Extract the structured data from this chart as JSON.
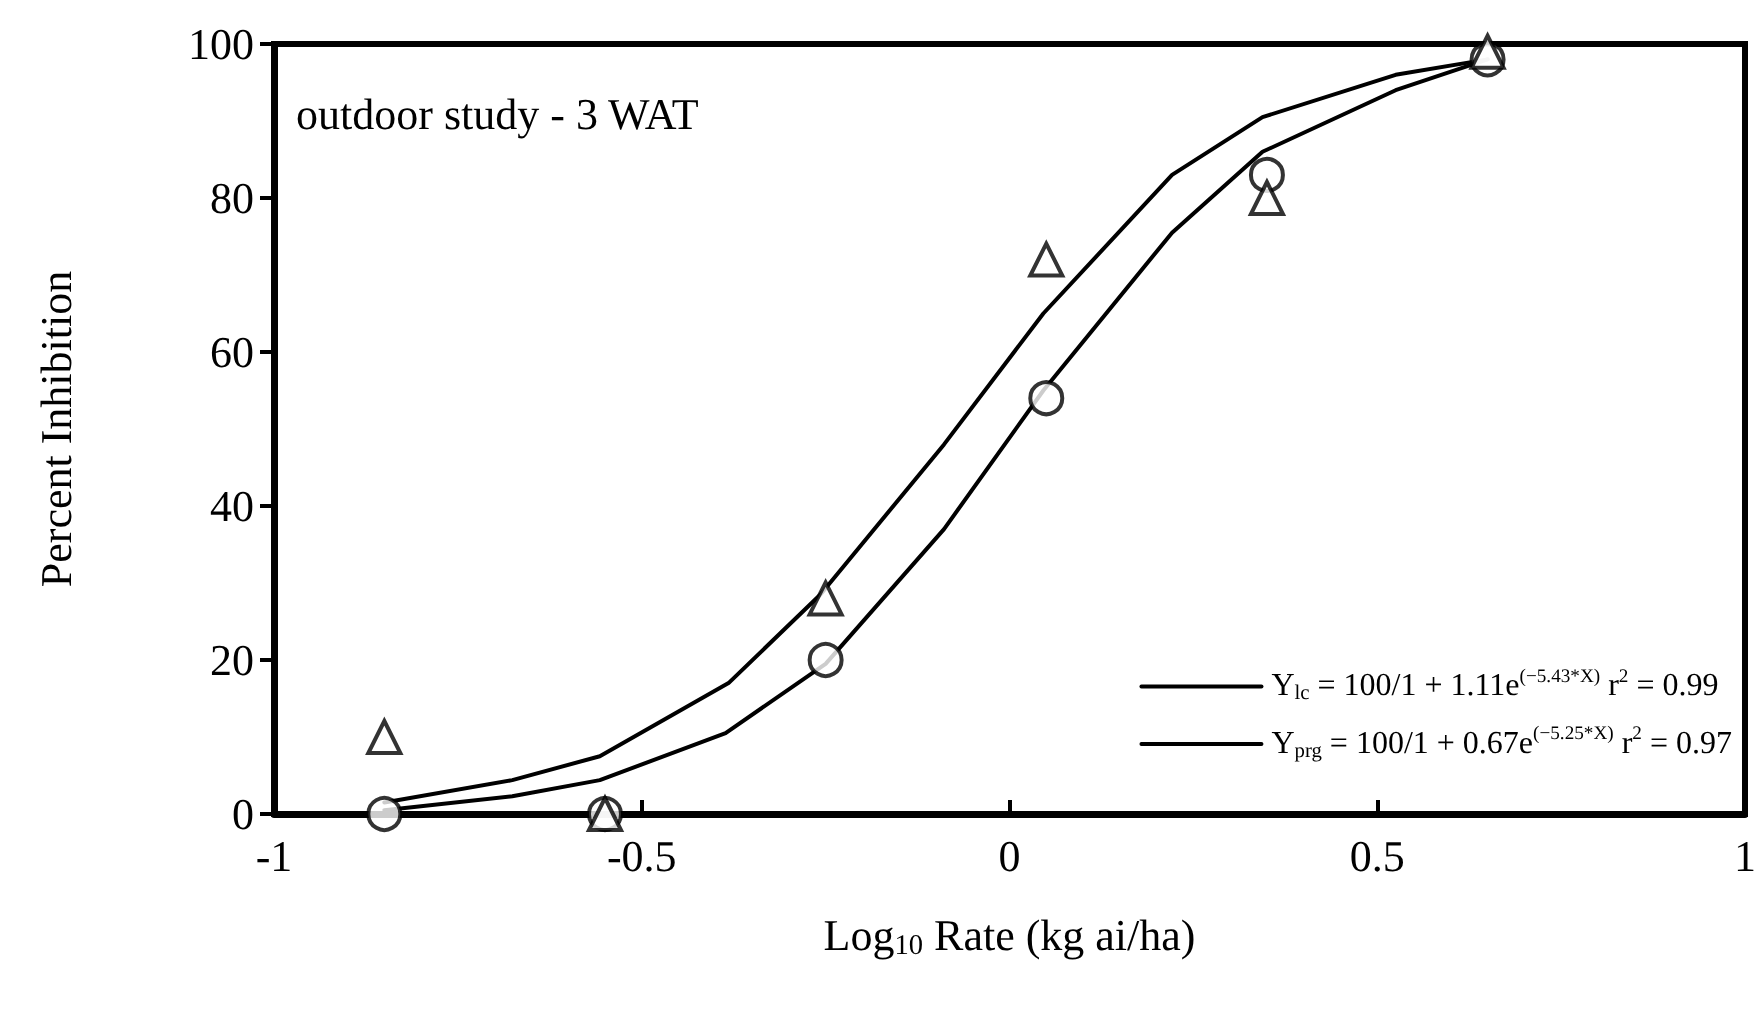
{
  "chart_data": {
    "type": "scatter",
    "xlabel": "Log$_{10}$ Rate (kg ai/ha)",
    "ylabel": "Percent Inhibition",
    "annotations": [
      "outdoor study - 3 WAT"
    ],
    "x": [
      -0.85,
      -0.55,
      -0.25,
      0.05,
      0.35,
      0.65
    ],
    "series": [
      {
        "marker": "circle",
        "color": "#000000",
        "values": [
          0,
          0,
          20,
          54,
          83,
          98
        ]
      },
      {
        "marker": "triangle",
        "color": "#000000",
        "values": [
          10,
          0,
          28,
          72,
          80,
          99
        ]
      },
      {
        "type": "line",
        "marker": "none",
        "name": "Y$_{lc}$ = 100/1 + 1.11e$^{(−5.43*X)}$ r$^{2}$ = 0.99",
        "color": "#000000",
        "x": [
          -0.85,
          -0.676,
          -0.557,
          -0.386,
          -0.25,
          -0.089,
          0.046,
          0.221,
          0.344,
          0.525,
          0.65
        ],
        "values": [
          0.5,
          2.3,
          4.4,
          10.5,
          19.5,
          37,
          55,
          75.5,
          86,
          94,
          98
        ]
      },
      {
        "type": "line",
        "marker": "none",
        "name": "Y$_{prg}$ = 100/1 + 0.67e$^{(−5.25*X)}$ r$^{2}$ = 0.97",
        "color": "#000000",
        "x": [
          -0.85,
          -0.676,
          -0.557,
          -0.382,
          -0.257,
          -0.089,
          0.046,
          0.221,
          0.344,
          0.525,
          0.65
        ],
        "values": [
          1.5,
          4.4,
          7.5,
          17,
          28.5,
          48,
          65,
          83,
          90.5,
          96,
          98
        ]
      }
    ],
    "xlim": [
      -1,
      1
    ],
    "xticks": [
      -1,
      -0.5,
      0,
      0.5,
      1
    ],
    "ylim": [
      0,
      100
    ],
    "yticks": [
      0,
      20,
      40,
      60,
      80,
      100
    ],
    "grid": false,
    "legend": "bottom right",
    "line_style": "solid"
  }
}
